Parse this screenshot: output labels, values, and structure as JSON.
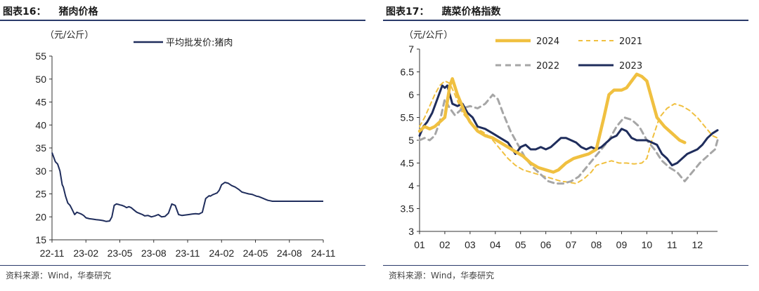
{
  "left": {
    "header_num": "图表16：",
    "header_title": "猪肉价格",
    "source": "资料来源：Wind，华泰研究",
    "chart_data": {
      "type": "line",
      "unit": "（元/公斤）",
      "ylim": [
        15,
        55
      ],
      "yticks": [
        "15",
        "20",
        "25",
        "30",
        "35",
        "40",
        "45",
        "50",
        "55"
      ],
      "x_tick_labels": [
        "22-11",
        "23-02",
        "23-05",
        "23-08",
        "23-11",
        "24-02",
        "24-05",
        "24-08",
        "24-11"
      ],
      "series": [
        {
          "name": "平均批发价:猪肉",
          "color": "#1f2d5c",
          "x": [
            0,
            0.15,
            0.3,
            0.5,
            0.7,
            0.9,
            1.0,
            1.2,
            1.4,
            1.6,
            1.8,
            2.0,
            2.2,
            2.4,
            2.6,
            2.8,
            3.0,
            3.3,
            3.6,
            3.9,
            4.2,
            4.5,
            4.8,
            5.1,
            5.3,
            5.5,
            5.7,
            5.9,
            6.0,
            6.2,
            6.4,
            6.6,
            6.8,
            7.0,
            7.2,
            7.5,
            7.8,
            8.0,
            8.2,
            8.5,
            8.8,
            9.1,
            9.4,
            9.7,
            10.0,
            10.3,
            10.6,
            10.9,
            11.2,
            11.5,
            11.8,
            12.1,
            12.4,
            12.7,
            13.0,
            13.3,
            13.6,
            13.9,
            14.0,
            14.2,
            14.4,
            14.6,
            14.8,
            15.0,
            15.3,
            15.6,
            15.9,
            16.2,
            16.5,
            16.8,
            17.1,
            17.4,
            17.7,
            17.9,
            18.1,
            18.3,
            18.5,
            18.7,
            18.9,
            19.1,
            19.3,
            19.5,
            19.7,
            20.0,
            20.3,
            20.6,
            20.9,
            21.2,
            21.5,
            21.8,
            22.1,
            22.4,
            22.7,
            23.0,
            23.3,
            23.6,
            23.9,
            24.0
          ],
          "values": [
            34.0,
            33.0,
            32.0,
            31.5,
            30.0,
            27.0,
            26.5,
            24.5,
            23.0,
            22.5,
            21.5,
            20.5,
            21.0,
            20.8,
            20.6,
            20.3,
            19.8,
            19.6,
            19.5,
            19.4,
            19.3,
            19.2,
            19.0,
            19.1,
            20.0,
            22.5,
            22.8,
            22.7,
            22.6,
            22.5,
            22.3,
            22.0,
            22.2,
            22.0,
            21.6,
            21.0,
            20.7,
            20.5,
            20.2,
            20.3,
            20.0,
            20.2,
            20.5,
            20.0,
            20.1,
            20.8,
            22.8,
            22.5,
            20.5,
            20.3,
            20.4,
            20.5,
            20.6,
            20.7,
            20.6,
            21.0,
            24.0,
            24.6,
            24.5,
            24.8,
            25.0,
            25.2,
            25.8,
            27.0,
            27.5,
            27.3,
            26.8,
            26.5,
            26.0,
            25.4,
            25.2,
            25.0,
            24.9,
            24.7,
            24.5,
            24.4,
            24.2,
            24.0,
            23.8,
            23.6,
            23.5,
            23.4,
            23.4,
            23.4,
            23.4,
            23.4,
            23.4,
            23.4,
            23.4,
            23.4,
            23.4,
            23.4,
            23.4,
            23.4,
            23.4,
            23.4,
            23.4,
            23.4
          ]
        }
      ]
    }
  },
  "right": {
    "header_num": "图表17：",
    "header_title": "蔬菜价格指数",
    "source": "资料来源：Wind，华泰研究",
    "chart_data": {
      "type": "line",
      "unit": "（元/公斤）",
      "ylim": [
        3,
        7
      ],
      "yticks": [
        "3",
        "3.5",
        "4",
        "4.5",
        "5",
        "5.5",
        "6",
        "6.5",
        "7"
      ],
      "x_tick_labels": [
        "01",
        "02",
        "03",
        "04",
        "05",
        "06",
        "07",
        "08",
        "09",
        "10",
        "11",
        "12"
      ],
      "series": [
        {
          "name": "2024",
          "color": "#f0c040",
          "width": 4.5,
          "dash": "",
          "x": [
            1.0,
            1.2,
            1.4,
            1.6,
            1.8,
            2.0,
            2.2,
            2.3,
            2.5,
            2.8,
            3.0,
            3.3,
            3.6,
            3.9,
            4.2,
            4.5,
            4.8,
            5.1,
            5.4,
            5.7,
            6.0,
            6.3,
            6.5,
            6.8,
            7.1,
            7.4,
            7.7,
            8.0,
            8.3,
            8.5,
            8.7,
            9.0,
            9.2,
            9.4,
            9.6,
            9.8,
            10.0,
            10.2,
            10.4,
            10.7,
            11.0,
            11.3,
            11.5
          ],
          "values": [
            5.2,
            5.3,
            5.25,
            5.3,
            5.4,
            5.5,
            6.2,
            6.35,
            6.0,
            5.6,
            5.4,
            5.2,
            5.1,
            5.05,
            4.95,
            4.85,
            4.75,
            4.65,
            4.5,
            4.4,
            4.35,
            4.3,
            4.35,
            4.5,
            4.6,
            4.65,
            4.7,
            4.8,
            5.5,
            6.0,
            6.1,
            6.1,
            6.15,
            6.3,
            6.45,
            6.4,
            6.3,
            5.9,
            5.5,
            5.3,
            5.15,
            5.0,
            4.95
          ]
        },
        {
          "name": "2021",
          "color": "#f0c040",
          "width": 2,
          "dash": "6,5",
          "x": [
            1.0,
            1.2,
            1.4,
            1.6,
            1.8,
            2.0,
            2.2,
            2.4,
            2.7,
            3.0,
            3.3,
            3.6,
            3.9,
            4.2,
            4.5,
            4.8,
            5.1,
            5.4,
            5.7,
            6.0,
            6.3,
            6.6,
            6.9,
            7.2,
            7.5,
            7.8,
            8.0,
            8.3,
            8.6,
            8.9,
            9.2,
            9.5,
            9.8,
            10.0,
            10.2,
            10.5,
            10.8,
            11.1,
            11.4,
            11.7,
            12.0,
            12.3,
            12.6,
            12.8
          ],
          "values": [
            5.3,
            5.5,
            5.75,
            6.0,
            6.2,
            6.3,
            6.25,
            6.0,
            5.6,
            5.4,
            5.25,
            5.15,
            5.0,
            4.8,
            4.6,
            4.45,
            4.35,
            4.3,
            4.25,
            4.2,
            4.15,
            4.1,
            4.08,
            4.05,
            4.15,
            4.3,
            4.45,
            4.5,
            4.55,
            4.5,
            4.5,
            4.48,
            4.5,
            4.6,
            5.0,
            5.5,
            5.7,
            5.8,
            5.75,
            5.65,
            5.5,
            5.3,
            5.1,
            5.05
          ]
        },
        {
          "name": "2022",
          "color": "#a6a6a6",
          "width": 3,
          "dash": "8,6",
          "x": [
            1.0,
            1.2,
            1.4,
            1.6,
            1.8,
            2.0,
            2.2,
            2.4,
            2.7,
            3.0,
            3.3,
            3.6,
            3.9,
            4.1,
            4.3,
            4.6,
            4.9,
            5.2,
            5.5,
            5.8,
            6.1,
            6.4,
            6.7,
            7.0,
            7.3,
            7.6,
            7.9,
            8.2,
            8.5,
            8.8,
            9.1,
            9.4,
            9.7,
            10.0,
            10.3,
            10.6,
            10.9,
            11.2,
            11.5,
            11.8,
            12.1,
            12.4,
            12.7,
            12.8
          ],
          "values": [
            5.0,
            5.05,
            5.0,
            5.1,
            5.4,
            5.9,
            5.7,
            5.55,
            5.7,
            5.75,
            5.7,
            5.8,
            6.0,
            5.9,
            5.6,
            5.2,
            4.9,
            4.6,
            4.4,
            4.25,
            4.1,
            4.05,
            4.05,
            4.1,
            4.2,
            4.4,
            4.6,
            4.8,
            5.0,
            5.3,
            5.5,
            5.45,
            5.3,
            5.0,
            4.8,
            4.55,
            4.4,
            4.3,
            4.1,
            4.3,
            4.5,
            4.65,
            4.8,
            5.0
          ]
        },
        {
          "name": "2023",
          "color": "#1f2d5c",
          "width": 3,
          "dash": "",
          "x": [
            1.0,
            1.15,
            1.3,
            1.5,
            1.7,
            1.9,
            2.0,
            2.1,
            2.3,
            2.5,
            2.7,
            2.9,
            3.1,
            3.3,
            3.6,
            3.9,
            4.2,
            4.5,
            4.8,
            5.0,
            5.2,
            5.4,
            5.6,
            5.8,
            6.0,
            6.2,
            6.4,
            6.6,
            6.8,
            7.0,
            7.2,
            7.4,
            7.6,
            7.8,
            8.0,
            8.2,
            8.4,
            8.6,
            8.8,
            9.0,
            9.2,
            9.4,
            9.6,
            9.8,
            10.0,
            10.2,
            10.4,
            10.6,
            10.8,
            11.0,
            11.2,
            11.4,
            11.6,
            11.8,
            12.0,
            12.2,
            12.4,
            12.6,
            12.8
          ],
          "values": [
            5.1,
            5.3,
            5.4,
            5.6,
            5.9,
            6.2,
            6.15,
            6.2,
            5.8,
            5.75,
            5.8,
            5.6,
            5.5,
            5.3,
            5.25,
            5.15,
            5.05,
            4.95,
            4.7,
            4.85,
            4.9,
            4.8,
            4.8,
            4.85,
            4.8,
            4.85,
            4.95,
            5.05,
            5.05,
            5.0,
            4.95,
            4.85,
            4.8,
            4.85,
            4.8,
            4.85,
            4.95,
            5.05,
            5.1,
            5.25,
            5.2,
            5.05,
            5.0,
            5.0,
            5.0,
            4.95,
            4.9,
            4.7,
            4.6,
            4.45,
            4.5,
            4.6,
            4.7,
            4.75,
            4.8,
            4.9,
            5.05,
            5.15,
            5.22
          ]
        }
      ]
    }
  }
}
